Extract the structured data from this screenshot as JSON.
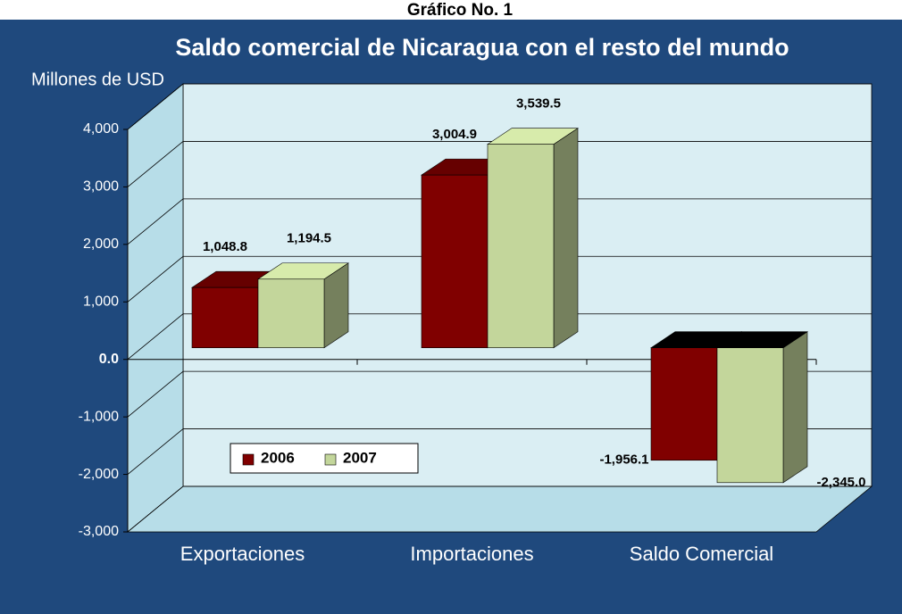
{
  "chart_data": {
    "type": "bar3d",
    "caption": "Gráfico No. 1",
    "title": "Saldo comercial de Nicaragua con el resto del mundo",
    "y_label": "Millones de USD",
    "categories": [
      "Exportaciones",
      "Importaciones",
      "Saldo Comercial"
    ],
    "series": [
      {
        "name": "2006",
        "color": "#800000",
        "values": [
          1048.8,
          3004.9,
          -1956.1
        ],
        "value_labels": [
          "1,048.8",
          "3,004.9",
          "-1,956.1"
        ]
      },
      {
        "name": "2007",
        "color": "#c3d69b",
        "values": [
          1194.5,
          3539.5,
          -2345.0
        ],
        "value_labels": [
          "1,194.5",
          "3,539.5",
          "-2,345.0"
        ]
      }
    ],
    "ylim": [
      -3000,
      4000
    ],
    "yticks": [
      {
        "value": -3000,
        "label": "-3,000"
      },
      {
        "value": -2000,
        "label": "-2,000"
      },
      {
        "value": -1000,
        "label": "-1,000"
      },
      {
        "value": 0,
        "label": "0.0"
      },
      {
        "value": 1000,
        "label": "1,000"
      },
      {
        "value": 2000,
        "label": "2,000"
      },
      {
        "value": 3000,
        "label": "3,000"
      },
      {
        "value": 4000,
        "label": "4,000"
      }
    ],
    "grid": true,
    "legend": "lower-left"
  }
}
